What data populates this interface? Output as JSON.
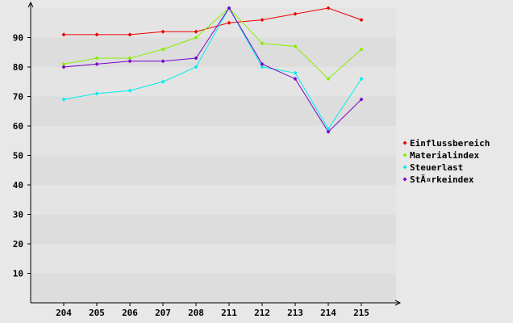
{
  "chart_data": {
    "type": "line",
    "categories": [
      "204",
      "205",
      "206",
      "207",
      "208",
      "211",
      "212",
      "213",
      "214",
      "215"
    ],
    "ylim": [
      0,
      100
    ],
    "yticks": [
      10,
      20,
      30,
      40,
      50,
      60,
      70,
      80,
      90
    ],
    "grid": "alternating horizontal bands",
    "legend_position": "right",
    "series": [
      {
        "name": "Einflussbereich",
        "color": "#ee0000",
        "values": [
          91,
          91,
          91,
          92,
          92,
          95,
          96,
          98,
          100,
          96
        ]
      },
      {
        "name": "Materialindex",
        "color": "#88ee00",
        "values": [
          81,
          83,
          83,
          86,
          90,
          100,
          88,
          87,
          76,
          86
        ]
      },
      {
        "name": "Steuerlast",
        "color": "#00eeee",
        "values": [
          69,
          71,
          72,
          75,
          80,
          100,
          80,
          78,
          59,
          76
        ]
      },
      {
        "name": "StÃ¤rkeindex",
        "color": "#7a00cc",
        "values": [
          80,
          81,
          82,
          82,
          83,
          100,
          81,
          76,
          58,
          69
        ]
      }
    ]
  }
}
